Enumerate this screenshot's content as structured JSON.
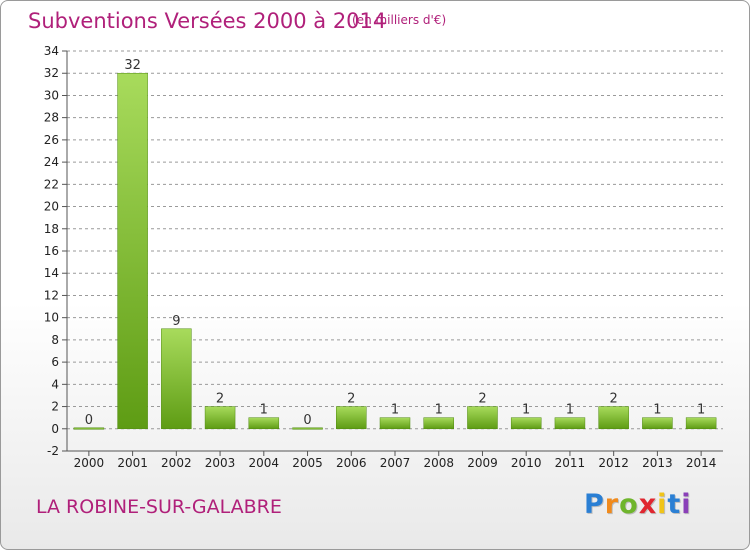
{
  "header": {
    "title": "Subventions Versées 2000 à 2014",
    "units": "(en milliers d'€)"
  },
  "footer": {
    "commune": "LA ROBINE-SUR-GALABRE",
    "logo_letters": [
      "P",
      "r",
      "o",
      "x",
      "i",
      "t",
      "i"
    ],
    "logo_colors": [
      "#2a7fd4",
      "#f08a1c",
      "#6fb52c",
      "#e0262f",
      "#f0c419",
      "#2a7fd4",
      "#8a3fb8"
    ]
  },
  "colors": {
    "title": "#b0207a",
    "bar_light": "#a8db5c",
    "bar_dark": "#5e9c14",
    "grid": "#9a9a9a"
  },
  "chart_data": {
    "type": "bar",
    "title": "Subventions Versées 2000 à 2014",
    "subtitle": "(en milliers d'€)",
    "xlabel": "",
    "ylabel": "",
    "categories": [
      "2000",
      "2001",
      "2002",
      "2003",
      "2004",
      "2005",
      "2006",
      "2007",
      "2008",
      "2009",
      "2010",
      "2011",
      "2012",
      "2013",
      "2014"
    ],
    "values": [
      0,
      32,
      9,
      2,
      1,
      0,
      2,
      1,
      1,
      2,
      1,
      1,
      2,
      1,
      1
    ],
    "ylim": [
      -2,
      34
    ],
    "yticks": [
      -2,
      0,
      2,
      4,
      6,
      8,
      10,
      12,
      14,
      16,
      18,
      20,
      22,
      24,
      26,
      28,
      30,
      32,
      34
    ],
    "grid": "horizontal dashed",
    "legend": "none"
  }
}
